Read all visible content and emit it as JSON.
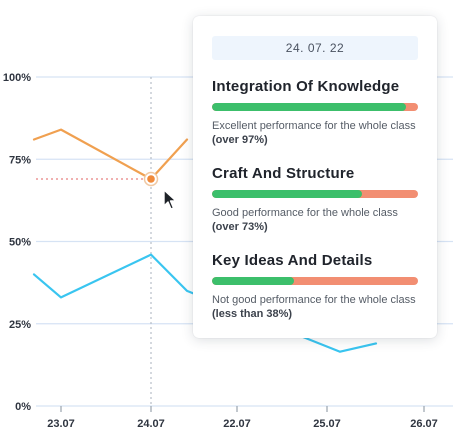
{
  "chart_data": {
    "type": "line",
    "x_labels": [
      "23.07",
      "24.07",
      "22.07",
      "25.07",
      "26.07"
    ],
    "y_ticks": [
      "0%",
      "25%",
      "50%",
      "75%",
      "100%"
    ],
    "ylim": [
      0,
      100
    ],
    "grid": true,
    "series": [
      {
        "color": "#f0a050",
        "points": [
          [
            22.7,
            81
          ],
          [
            23.0,
            84
          ],
          [
            24.0,
            69
          ],
          [
            24.4,
            81
          ]
        ]
      },
      {
        "color": "#39c5f0",
        "points": [
          [
            22.7,
            40
          ],
          [
            23.0,
            33
          ],
          [
            24.0,
            46
          ],
          [
            24.4,
            35
          ],
          [
            26.1,
            16.5
          ],
          [
            26.5,
            19
          ]
        ],
        "hidden_segment": [
          [
            24.4,
            35
          ],
          [
            25.0,
            16.5
          ],
          [
            26.1,
            16.5
          ]
        ]
      }
    ],
    "highlight": {
      "x": 24.0,
      "y": 69
    }
  },
  "tooltip": {
    "date": "24. 07. 22",
    "metrics": [
      {
        "title": "Integration Of Knowledge",
        "fill": 0.94,
        "desc": "Excellent performance for the whole class",
        "emphasis": "(over 97%)"
      },
      {
        "title": "Craft And Structure",
        "fill": 0.73,
        "desc": "Good performance for the whole class",
        "emphasis": "(over 73%)"
      },
      {
        "title": "Key Ideas And Details",
        "fill": 0.4,
        "desc": "Not good performance for the whole class",
        "emphasis": "(less than 38%)"
      }
    ]
  },
  "colors": {
    "good": "#3cbf6b",
    "bad": "#f28e72",
    "grid": "#d6e3f4",
    "axis_text": "#2f3540"
  },
  "icons": {
    "cursor": "pointer-cursor-icon"
  }
}
